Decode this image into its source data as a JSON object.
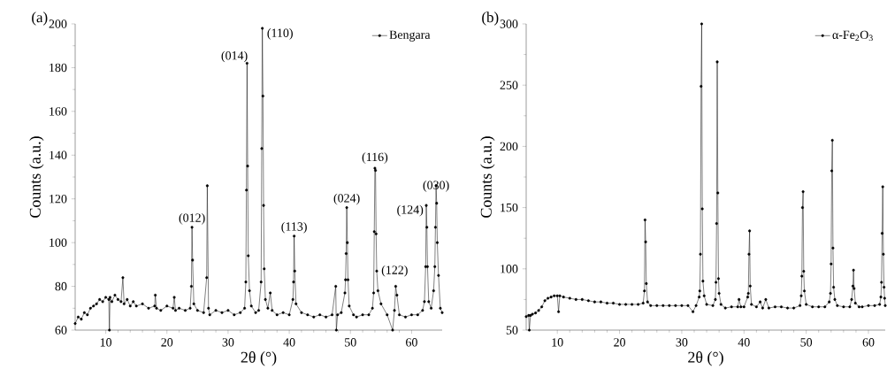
{
  "chart_data": [
    {
      "type": "line",
      "title": "(a)",
      "xlabel": "2θ (°)",
      "ylabel": "Counts (a.u.)",
      "xlim": [
        5,
        65
      ],
      "ylim": [
        60,
        200
      ],
      "xticks": [
        10,
        20,
        30,
        40,
        50,
        60
      ],
      "yticks": [
        60,
        80,
        100,
        120,
        140,
        160,
        180,
        200
      ],
      "legend": "top right",
      "marker": "circle",
      "line_style": "solid",
      "grid": false,
      "series": [
        {
          "name": "Bengara",
          "color": "#000000",
          "x": [
            5,
            5.5,
            6,
            6.5,
            7,
            7.5,
            8,
            8.5,
            9,
            9.5,
            10,
            10.5,
            10.6,
            10.7,
            11,
            11.5,
            12,
            12.5,
            12.8,
            13,
            13.5,
            14,
            14.5,
            15,
            16,
            17,
            18,
            18.1,
            18.3,
            19,
            20,
            21,
            21.2,
            21.4,
            22,
            23,
            23.8,
            24.0,
            24.1,
            24.2,
            24.4,
            25,
            26,
            26.5,
            26.6,
            26.8,
            27,
            28,
            29,
            30,
            31,
            32,
            32.7,
            32.9,
            33.0,
            33.1,
            33.2,
            33.3,
            33.5,
            33.8,
            34.5,
            35.0,
            35.4,
            35.5,
            35.6,
            35.7,
            35.8,
            35.9,
            36.1,
            36.5,
            36.9,
            37.2,
            38,
            39,
            40,
            40.6,
            40.7,
            40.8,
            40.9,
            41.1,
            42,
            43,
            44,
            45,
            46,
            47,
            47.6,
            47.7,
            47.9,
            48.5,
            49.1,
            49.2,
            49.3,
            49.4,
            49.5,
            49.6,
            49.8,
            50.5,
            51,
            52,
            53,
            53.6,
            53.8,
            53.9,
            54.0,
            54.1,
            54.2,
            54.3,
            54.5,
            55,
            56,
            56.9,
            57.2,
            57.4,
            57.6,
            58,
            59,
            60,
            61,
            61.8,
            62.1,
            62.3,
            62.4,
            62.5,
            62.6,
            62.8,
            63.2,
            63.6,
            63.8,
            63.9,
            64.0,
            64.1,
            64.2,
            64.4,
            64.7,
            65
          ],
          "values": [
            63,
            66,
            65,
            68,
            67,
            70,
            71,
            72,
            74,
            73,
            75,
            74,
            60,
            75,
            73,
            76,
            74,
            73,
            84,
            72,
            74,
            71,
            73,
            71,
            72,
            70,
            71,
            76,
            70,
            69,
            71,
            70,
            75,
            69,
            70,
            69,
            70,
            80,
            107,
            92,
            72,
            69,
            68,
            84,
            126,
            70,
            67,
            69,
            68,
            69,
            67,
            68,
            70,
            82,
            124,
            182,
            135,
            94,
            78,
            71,
            68,
            69,
            82,
            143,
            198,
            167,
            117,
            88,
            74,
            70,
            77,
            69,
            67,
            68,
            67,
            74,
            82,
            103,
            87,
            72,
            68,
            67,
            66,
            67,
            66,
            67,
            80,
            60,
            67,
            68,
            77,
            83,
            95,
            116,
            100,
            83,
            71,
            67,
            66,
            67,
            67,
            70,
            77,
            105,
            134,
            133,
            104,
            87,
            78,
            72,
            67,
            60,
            69,
            80,
            76,
            67,
            66,
            67,
            67,
            69,
            73,
            89,
            117,
            107,
            89,
            73,
            70,
            78,
            89,
            107,
            126,
            118,
            100,
            85,
            70,
            68
          ]
        }
      ],
      "annotations": [
        {
          "text": "(012)",
          "x": 24.1,
          "y": 107
        },
        {
          "text": "(014)",
          "x": 33.1,
          "y": 182
        },
        {
          "text": "(110)",
          "x": 35.6,
          "y": 198
        },
        {
          "text": "(113)",
          "x": 40.8,
          "y": 103
        },
        {
          "text": "(024)",
          "x": 49.4,
          "y": 116
        },
        {
          "text": "(116)",
          "x": 54.0,
          "y": 134
        },
        {
          "text": "(122)",
          "x": 54.3,
          "y": 87
        },
        {
          "text": "(124)",
          "x": 62.4,
          "y": 117
        },
        {
          "text": "(030)",
          "x": 64.0,
          "y": 126
        }
      ]
    },
    {
      "type": "line",
      "title": "(b)",
      "xlabel": "2θ (°)",
      "ylabel": "Counts (a.u.)",
      "xlim": [
        5,
        62.7
      ],
      "ylim": [
        50,
        300
      ],
      "xticks": [
        10,
        20,
        30,
        40,
        50,
        60
      ],
      "yticks": [
        50,
        100,
        150,
        200,
        250,
        300
      ],
      "legend": "top right",
      "marker": "circle",
      "line_style": "solid",
      "grid": false,
      "series": [
        {
          "name": "α-Fe$_{2}$O$_{3}$",
          "color": "#000000",
          "x": [
            5,
            5.4,
            5.5,
            5.7,
            6,
            6.5,
            7,
            7.5,
            8,
            8.5,
            9,
            9.5,
            10,
            10.2,
            10.4,
            11,
            12,
            13,
            14,
            15,
            16,
            17,
            18,
            19,
            20,
            21,
            22,
            23,
            23.8,
            24.0,
            24.1,
            24.2,
            24.3,
            24.5,
            25,
            26,
            27,
            28,
            29,
            30,
            31,
            31.8,
            32.3,
            32.8,
            32.9,
            33.0,
            33.1,
            33.2,
            33.3,
            33.4,
            33.6,
            34,
            35,
            35.4,
            35.5,
            35.6,
            35.7,
            35.8,
            35.9,
            36.0,
            36.3,
            37,
            38,
            39,
            39.2,
            39.5,
            40,
            40.6,
            40.7,
            40.8,
            40.9,
            41.0,
            41.2,
            42,
            42.6,
            43,
            43.5,
            44,
            45,
            46,
            47,
            48,
            49,
            49.2,
            49.3,
            49.4,
            49.5,
            49.6,
            49.7,
            50,
            51,
            52,
            53,
            53.7,
            53.9,
            54.0,
            54.1,
            54.2,
            54.3,
            54.4,
            54.6,
            55,
            56,
            57,
            57.3,
            57.5,
            57.6,
            57.7,
            57.9,
            58.5,
            59,
            60,
            61,
            61.8,
            62.0,
            62.1,
            62.2,
            62.3,
            62.4,
            62.5,
            62.6,
            62.7
          ],
          "values": [
            61,
            62,
            50,
            62,
            63,
            64,
            66,
            69,
            74,
            76,
            77,
            78,
            78,
            65,
            78,
            77,
            76,
            75,
            75,
            74,
            73,
            73,
            72,
            72,
            71,
            71,
            71,
            71,
            72,
            82,
            140,
            122,
            88,
            73,
            70,
            70,
            70,
            70,
            70,
            70,
            70,
            65,
            70,
            77,
            82,
            112,
            249,
            300,
            149,
            90,
            78,
            71,
            70,
            75,
            89,
            137,
            269,
            162,
            92,
            80,
            71,
            68,
            69,
            69,
            75,
            69,
            69,
            77,
            80,
            112,
            131,
            86,
            71,
            69,
            73,
            68,
            75,
            68,
            69,
            69,
            68,
            68,
            70,
            78,
            94,
            150,
            163,
            98,
            82,
            71,
            69,
            69,
            69,
            73,
            80,
            104,
            180,
            205,
            117,
            85,
            75,
            70,
            69,
            69,
            75,
            86,
            99,
            84,
            72,
            69,
            69,
            70,
            70,
            71,
            77,
            89,
            129,
            167,
            112,
            85,
            76,
            70
          ]
        }
      ]
    }
  ]
}
